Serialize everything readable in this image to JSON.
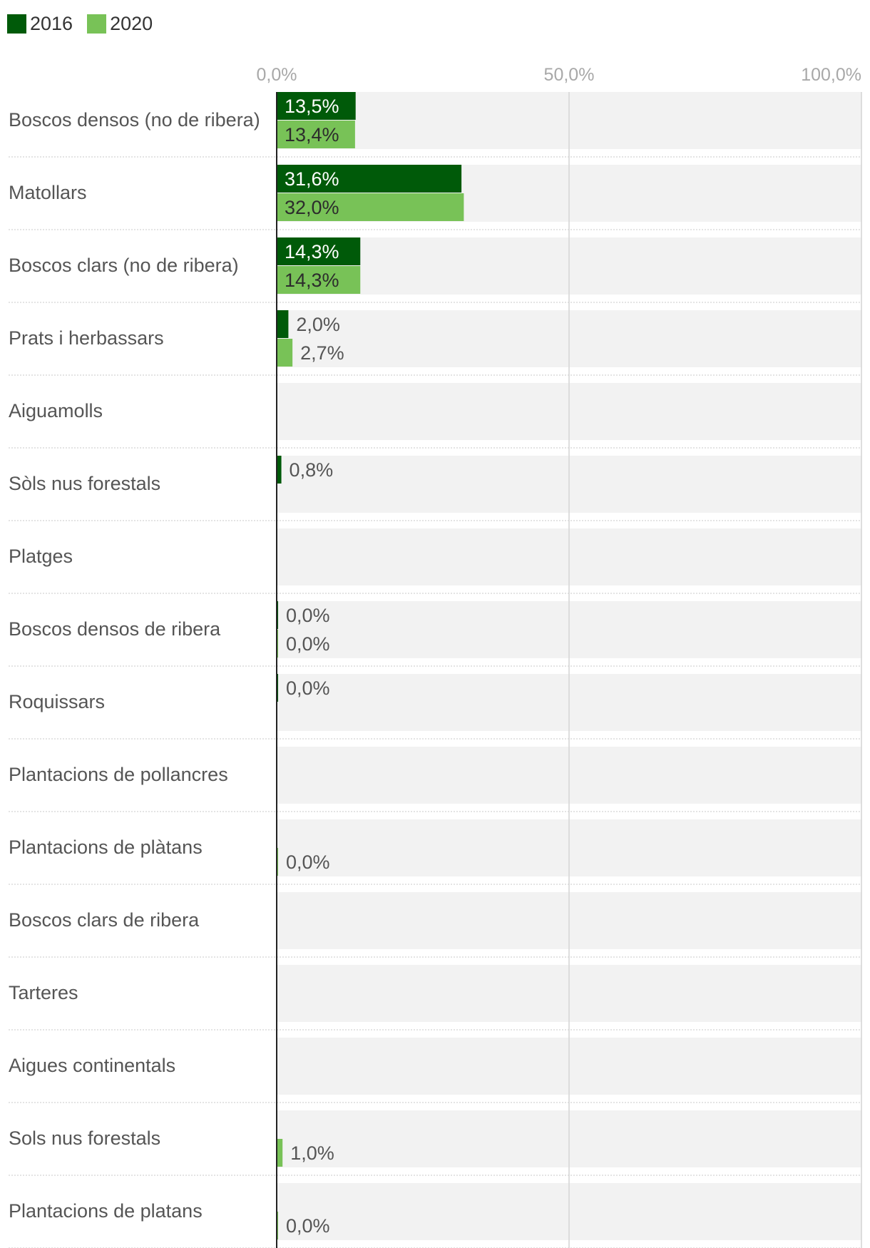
{
  "chart_data": {
    "type": "bar",
    "orientation": "horizontal",
    "xlim": [
      0,
      100
    ],
    "ticks": [
      "0,0%",
      "50,0%",
      "100,0%"
    ],
    "tick_values": [
      0,
      50,
      100
    ],
    "colors": {
      "2016": "#005a09",
      "2020": "#78c257"
    },
    "series_names": [
      "2016",
      "2020"
    ],
    "categories": [
      "Boscos densos (no de ribera)",
      "Matollars",
      "Boscos clars (no de ribera)",
      "Prats i herbassars",
      "Aiguamolls",
      "Sòls nus forestals",
      "Platges",
      "Boscos densos de ribera",
      "Roquissars",
      "Plantacions de pollancres",
      "Plantacions de plàtans",
      "Boscos clars de ribera",
      "Tarteres",
      "Aigues continentals",
      "Sols nus forestals",
      "Plantacions de platans"
    ],
    "series": [
      {
        "name": "2016",
        "values": [
          13.5,
          31.6,
          14.3,
          2.0,
          null,
          0.8,
          null,
          0.0,
          0.0,
          null,
          null,
          null,
          null,
          null,
          null,
          null
        ],
        "labels": [
          "13,5%",
          "31,6%",
          "14,3%",
          "2,0%",
          "",
          "0,8%",
          "",
          "0,0%",
          "0,0%",
          "",
          "",
          "",
          "",
          "",
          "",
          ""
        ]
      },
      {
        "name": "2020",
        "values": [
          13.4,
          32.0,
          14.3,
          2.7,
          null,
          null,
          null,
          0.0,
          null,
          null,
          0.0,
          null,
          null,
          null,
          1.0,
          0.0
        ],
        "labels": [
          "13,4%",
          "32,0%",
          "14,3%",
          "2,7%",
          "",
          "",
          "",
          "0,0%",
          "",
          "",
          "0,0%",
          "",
          "",
          "",
          "1,0%",
          "0,0%"
        ]
      }
    ]
  }
}
